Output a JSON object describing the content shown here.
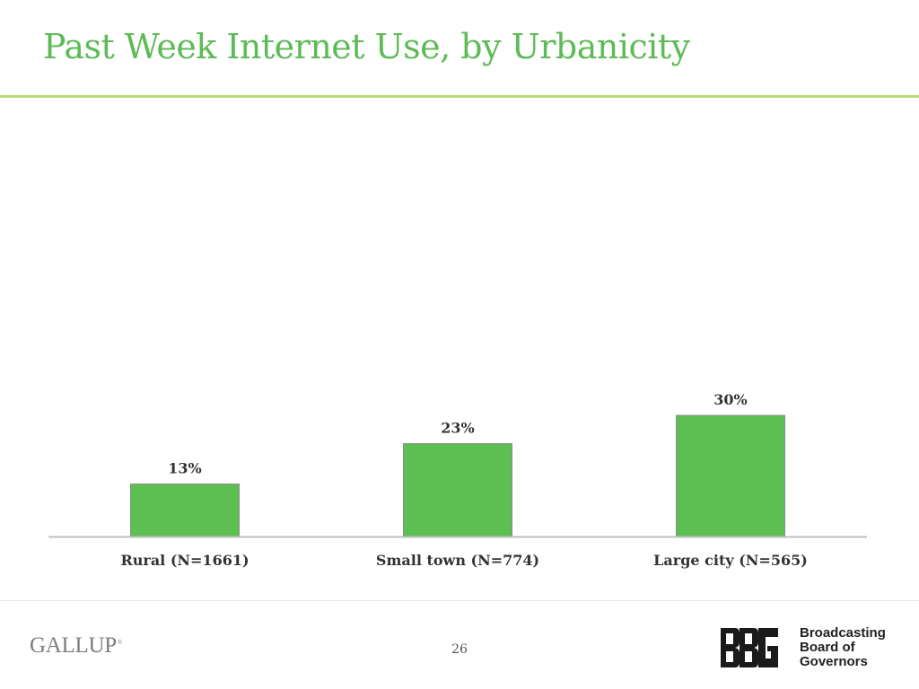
{
  "slide": {
    "title": "Past Week Internet Use, by Urbanicity",
    "page_number": "26"
  },
  "footer": {
    "gallup_logo": "GALLUP",
    "gallup_mark": "®",
    "bbg_mark": "BBG",
    "bbg_name_lines": [
      "Broadcasting",
      "Board of",
      "Governors"
    ]
  },
  "colors": {
    "title": "#5dbb55",
    "title_rule": "#b6dc7a",
    "bar_fill": "#5dbf52",
    "bar_stroke": "#8c8c8c",
    "axis": "#bfbfbf"
  },
  "chart_data": {
    "type": "bar",
    "categories": [
      "Rural (N=1661)",
      "Small town (N=774)",
      "Large city (N=565)"
    ],
    "values": [
      13,
      23,
      30
    ],
    "value_labels": [
      "13%",
      "23%",
      "30%"
    ],
    "unit": "%",
    "title": "",
    "xlabel": "",
    "ylabel": "",
    "ylim": [
      0,
      30
    ],
    "grid": false,
    "legend": "none"
  }
}
